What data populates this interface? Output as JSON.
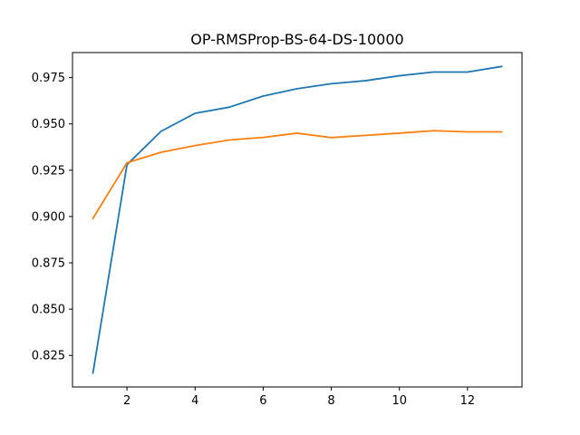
{
  "chart_data": {
    "type": "line",
    "title": "OP-RMSProp-BS-64-DS-10000",
    "xlabel": "",
    "ylabel": "",
    "xlim": [
      0.4,
      13.6
    ],
    "ylim": [
      0.808,
      0.9885
    ],
    "x_ticks": [
      2,
      4,
      6,
      8,
      10,
      12
    ],
    "y_ticks": [
      0.825,
      0.85,
      0.875,
      0.9,
      0.925,
      0.95,
      0.975
    ],
    "y_tick_labels": [
      "0.825",
      "0.850",
      "0.875",
      "0.900",
      "0.925",
      "0.950",
      "0.975"
    ],
    "grid": false,
    "x": [
      1,
      2,
      3,
      4,
      5,
      6,
      7,
      8,
      9,
      10,
      11,
      12,
      13
    ],
    "series": [
      {
        "color": "#1f77b4",
        "values": [
          0.8155,
          0.928,
          0.946,
          0.9557,
          0.959,
          0.965,
          0.969,
          0.9717,
          0.9733,
          0.976,
          0.978,
          0.978,
          0.981
        ]
      },
      {
        "color": "#ff7f0e",
        "values": [
          0.899,
          0.929,
          0.9347,
          0.9383,
          0.9413,
          0.9427,
          0.945,
          0.9426,
          0.9438,
          0.945,
          0.9463,
          0.9457,
          0.9457
        ]
      }
    ]
  }
}
